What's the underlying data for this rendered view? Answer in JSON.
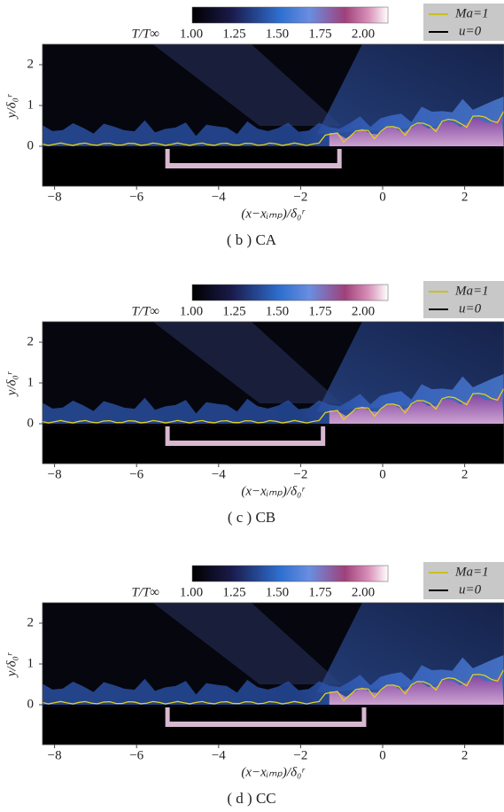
{
  "panels": [
    {
      "colorbar": {
        "label": "T/T∞",
        "ticks": [
          "1.00",
          "1.25",
          "1.50",
          "1.75",
          "2.00"
        ]
      },
      "legend": [
        "Ma=1",
        "u=0"
      ],
      "y_label": "y/δ₀ʳ",
      "y_ticks": [
        "2",
        "1",
        "0"
      ],
      "x_label": "(x−xᵢₘₚ)/δ₀ʳ",
      "x_ticks": [
        "−8",
        "−6",
        "−4",
        "−2",
        "0",
        "2"
      ],
      "caption": "( b )  CA"
    },
    {
      "colorbar": {
        "label": "T/T∞",
        "ticks": [
          "1.00",
          "1.25",
          "1.50",
          "1.75",
          "2.00"
        ]
      },
      "legend": [
        "Ma=1",
        "u=0"
      ],
      "y_label": "y/δ₀ʳ",
      "y_ticks": [
        "2",
        "1",
        "0"
      ],
      "x_label": "(x−xᵢₘₚ)/δ₀ʳ",
      "x_ticks": [
        "−8",
        "−6",
        "−4",
        "−2",
        "0",
        "2"
      ],
      "caption": "( c )  CB"
    },
    {
      "colorbar": {
        "label": "T/T∞",
        "ticks": [
          "1.00",
          "1.25",
          "1.50",
          "1.75",
          "2.00"
        ]
      },
      "legend": [
        "Ma=1",
        "u=0"
      ],
      "y_label": "y/δ₀ʳ",
      "y_ticks": [
        "2",
        "1",
        "0"
      ],
      "x_label": "(x−xᵢₘₚ)/δ₀ʳ",
      "x_ticks": [
        "−8",
        "−6",
        "−4",
        "−2",
        "0",
        "2"
      ],
      "caption": "( d )  CC"
    }
  ]
}
